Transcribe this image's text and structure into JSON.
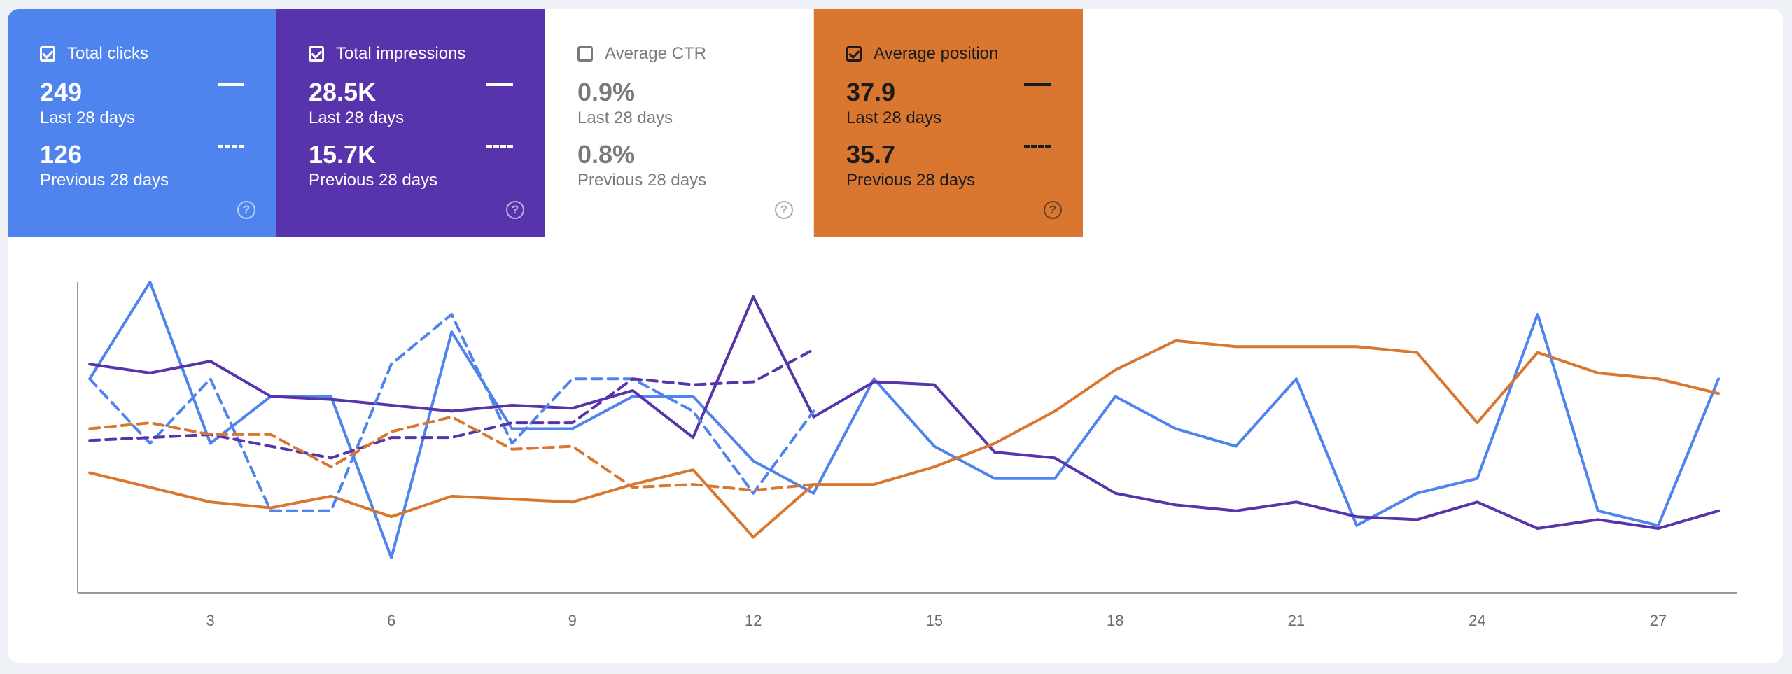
{
  "metrics": [
    {
      "name": "Total clicks",
      "checked": true,
      "current_value": "249",
      "current_period": "Last 28 days",
      "previous_value": "126",
      "previous_period": "Previous 28 days",
      "color": "#4f84ee"
    },
    {
      "name": "Total impressions",
      "checked": true,
      "current_value": "28.5K",
      "current_period": "Last 28 days",
      "previous_value": "15.7K",
      "previous_period": "Previous 28 days",
      "color": "#5734ab"
    },
    {
      "name": "Average CTR",
      "checked": false,
      "current_value": "0.9%",
      "current_period": "Last 28 days",
      "previous_value": "0.8%",
      "previous_period": "Previous 28 days",
      "color": "#ffffff"
    },
    {
      "name": "Average position",
      "checked": true,
      "current_value": "37.9",
      "current_period": "Last 28 days",
      "previous_value": "35.7",
      "previous_period": "Previous 28 days",
      "color": "#d97730"
    }
  ],
  "chart_data": {
    "type": "line",
    "x_ticks": [
      3,
      6,
      9,
      12,
      15,
      18,
      21,
      24,
      27
    ],
    "xlim": [
      0.8,
      28.3
    ],
    "grid": false,
    "legend": "none",
    "axis_ranges": "no y-axis labels; each series scaled to 0–100 relative units",
    "ylim": [
      0,
      100
    ],
    "series": [
      {
        "metric": "Total clicks",
        "period": "Last 28 days",
        "style": "solid",
        "color": "#4f84ee",
        "x": [
          1,
          2,
          3,
          4,
          5,
          6,
          7,
          8,
          9,
          10,
          11,
          12,
          13,
          14,
          15,
          16,
          17,
          18,
          19,
          20,
          21,
          22,
          23,
          24,
          25,
          26,
          27,
          28
        ],
        "y": [
          67,
          100,
          45,
          61,
          61,
          6,
          83,
          50,
          50,
          61,
          61,
          39,
          28,
          67,
          44,
          33,
          33,
          61,
          50,
          44,
          67,
          17,
          28,
          33,
          89,
          22,
          17,
          67
        ]
      },
      {
        "metric": "Total impressions",
        "period": "Last 28 days",
        "style": "solid",
        "color": "#5734ab",
        "x": [
          1,
          2,
          3,
          4,
          5,
          6,
          7,
          8,
          9,
          10,
          11,
          12,
          13,
          14,
          15,
          16,
          17,
          18,
          19,
          20,
          21,
          22,
          23,
          24,
          25,
          26,
          27,
          28
        ],
        "y": [
          72,
          69,
          73,
          61,
          60,
          58,
          56,
          58,
          57,
          63,
          47,
          95,
          54,
          66,
          65,
          42,
          40,
          28,
          24,
          22,
          25,
          20,
          19,
          25,
          16,
          19,
          16,
          22
        ]
      },
      {
        "metric": "Average position",
        "period": "Last 28 days",
        "style": "solid",
        "color": "#d97730",
        "x": [
          1,
          2,
          3,
          4,
          5,
          6,
          7,
          8,
          9,
          10,
          11,
          12,
          13,
          14,
          15,
          16,
          17,
          18,
          19,
          20,
          21,
          22,
          23,
          24,
          25,
          26,
          27,
          28
        ],
        "y": [
          35,
          30,
          25,
          23,
          27,
          20,
          27,
          26,
          25,
          31,
          36,
          13,
          31,
          31,
          37,
          45,
          56,
          70,
          80,
          78,
          78,
          78,
          76,
          52,
          76,
          69,
          67,
          62
        ]
      },
      {
        "metric": "Total clicks",
        "period": "Previous 28 days",
        "style": "dashed",
        "color": "#4f84ee",
        "x": [
          1,
          2,
          3,
          4,
          5,
          6,
          7,
          8,
          9,
          10,
          11,
          12,
          13
        ],
        "y": [
          67,
          45,
          67,
          22,
          22,
          72,
          89,
          45,
          67,
          67,
          56,
          28,
          56
        ]
      },
      {
        "metric": "Total impressions",
        "period": "Previous 28 days",
        "style": "dashed",
        "color": "#5734ab",
        "x": [
          1,
          2,
          3,
          4,
          5,
          6,
          7,
          8,
          9,
          10,
          11,
          12,
          13
        ],
        "y": [
          46,
          47,
          48,
          44,
          40,
          47,
          47,
          52,
          52,
          67,
          65,
          66,
          77
        ]
      },
      {
        "metric": "Average position",
        "period": "Previous 28 days",
        "style": "dashed",
        "color": "#d97730",
        "x": [
          1,
          2,
          3,
          4,
          5,
          6,
          7,
          8,
          9,
          10,
          11,
          12,
          13
        ],
        "y": [
          50,
          52,
          48,
          48,
          37,
          49,
          54,
          43,
          44,
          30,
          31,
          29,
          31
        ]
      }
    ]
  }
}
